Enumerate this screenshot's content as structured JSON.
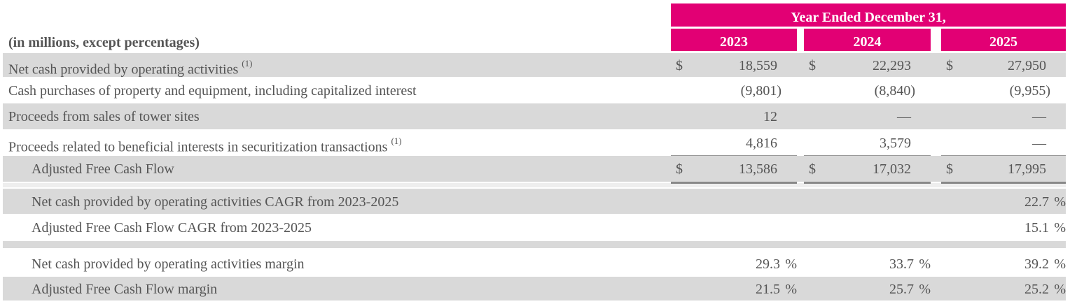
{
  "table": {
    "unit_note": "(in millions, except percentages)",
    "period": "Year Ended December 31,",
    "columns": [
      "2023",
      "2024",
      "2025"
    ],
    "rows": [
      {
        "label": "Net cash provided by operating activities",
        "note": "(1)",
        "cells": [
          {
            "prefix": "$",
            "value": "18,559"
          },
          {
            "prefix": "$",
            "value": "22,293"
          },
          {
            "prefix": "$",
            "value": "27,950"
          }
        ]
      },
      {
        "label": "Cash purchases of property and equipment, including capitalized interest",
        "cells": [
          {
            "value": "(9,801)"
          },
          {
            "value": "(8,840)"
          },
          {
            "value": "(9,955)"
          }
        ]
      },
      {
        "label": "Proceeds from sales of tower sites",
        "cells": [
          {
            "value": "12"
          },
          {
            "value": "—"
          },
          {
            "value": "—"
          }
        ]
      },
      {
        "label": "Proceeds related to beneficial interests in securitization transactions",
        "note": "(1)",
        "cells": [
          {
            "value": "4,816"
          },
          {
            "value": "3,579"
          },
          {
            "value": "—"
          }
        ]
      },
      {
        "label": "Adjusted Free Cash Flow",
        "cells": [
          {
            "prefix": "$",
            "value": "13,586"
          },
          {
            "prefix": "$",
            "value": "17,032"
          },
          {
            "prefix": "$",
            "value": "17,995"
          }
        ]
      },
      {
        "label": "Net cash provided by operating activities CAGR from 2023-2025",
        "cells": [
          null,
          null,
          {
            "value": "22.7",
            "suffix": "%"
          }
        ]
      },
      {
        "label": "Adjusted Free Cash Flow CAGR from 2023-2025",
        "cells": [
          null,
          null,
          {
            "value": "15.1",
            "suffix": "%"
          }
        ]
      },
      {
        "label": "Net cash provided by operating activities margin",
        "cells": [
          {
            "value": "29.3",
            "suffix": "%"
          },
          {
            "value": "33.7",
            "suffix": "%"
          },
          {
            "value": "39.2",
            "suffix": "%"
          }
        ]
      },
      {
        "label": "Adjusted Free Cash Flow margin",
        "cells": [
          {
            "value": "21.5",
            "suffix": "%"
          },
          {
            "value": "25.7",
            "suffix": "%"
          },
          {
            "value": "25.2",
            "suffix": "%"
          }
        ]
      }
    ]
  }
}
